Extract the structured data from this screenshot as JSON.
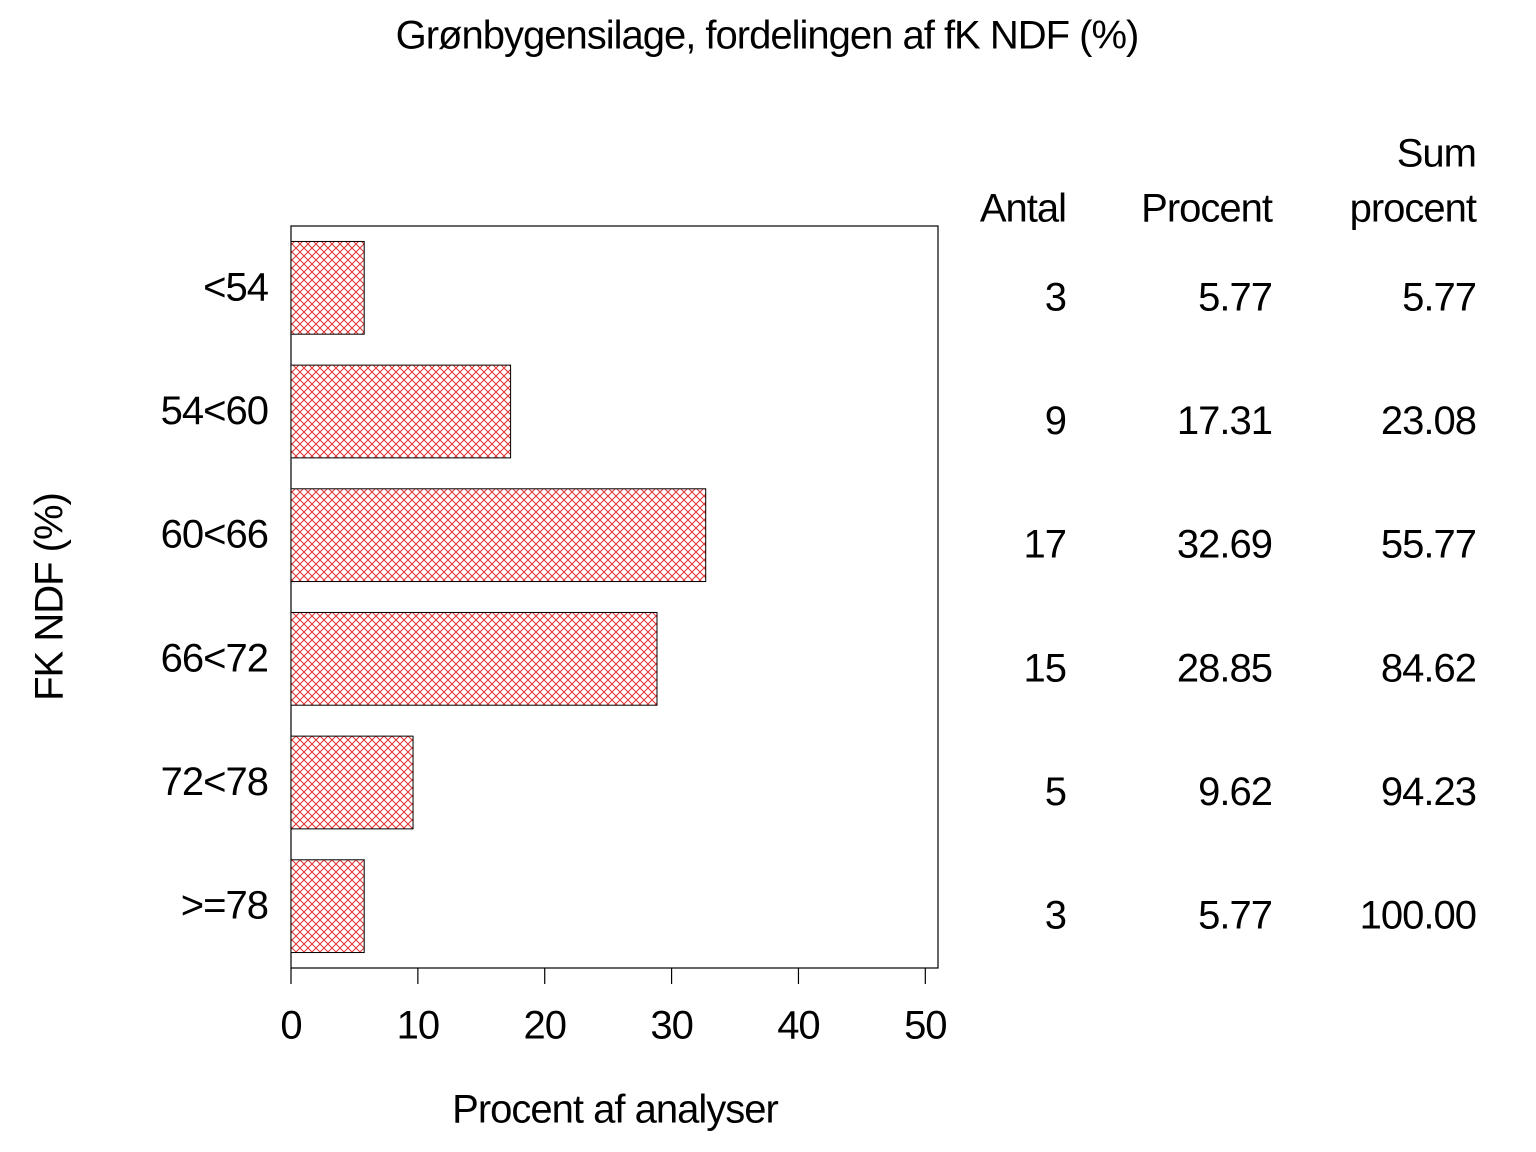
{
  "chart_data": {
    "type": "barh",
    "title": "Grønbygensilage, fordelingen af fK NDF (%)",
    "xlabel": "Procent af analyser",
    "ylabel": "FK NDF (%)",
    "categories": [
      "<54",
      "54<60",
      "60<66",
      "66<72",
      "72<78",
      ">=78"
    ],
    "values": [
      5.77,
      17.31,
      32.69,
      28.85,
      9.62,
      5.77
    ],
    "color": "#e03030",
    "xlim": [
      0,
      51
    ],
    "xticks": [
      0,
      10,
      20,
      30,
      40,
      50
    ],
    "table": {
      "antal_header": "Antal",
      "procent_header": "Procent",
      "sum_header": [
        "Sum",
        "procent"
      ],
      "antal": [
        3,
        9,
        17,
        15,
        5,
        3
      ],
      "sum_procent": [
        "5.77",
        "23.08",
        "55.77",
        "84.62",
        "94.23",
        "100.00"
      ]
    }
  }
}
